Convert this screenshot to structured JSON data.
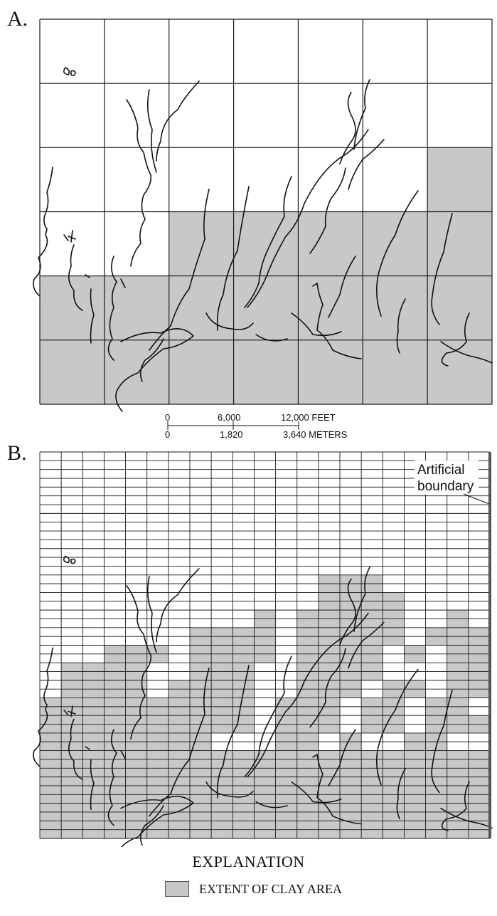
{
  "panel_a": {
    "label": "A.",
    "grid": {
      "cols": 7,
      "rows": 6
    },
    "clay_cells": [
      [
        2,
        6
      ],
      [
        3,
        2
      ],
      [
        3,
        3
      ],
      [
        3,
        4
      ],
      [
        3,
        5
      ],
      [
        3,
        6
      ],
      [
        4,
        0
      ],
      [
        4,
        1
      ],
      [
        4,
        2
      ],
      [
        4,
        3
      ],
      [
        4,
        4
      ],
      [
        4,
        5
      ],
      [
        4,
        6
      ],
      [
        5,
        0
      ],
      [
        5,
        1
      ],
      [
        5,
        2
      ],
      [
        5,
        3
      ],
      [
        5,
        4
      ],
      [
        5,
        5
      ],
      [
        5,
        6
      ]
    ]
  },
  "scale_bar": {
    "feet_labels": [
      "0",
      "6,000",
      "12,000 FEET"
    ],
    "meter_labels": [
      "0",
      "1,820",
      "3,640 METERS"
    ]
  },
  "panel_b": {
    "label": "B.",
    "grid": {
      "cols": 21,
      "rows": 44
    },
    "annotation": [
      "Artificial",
      "boundary"
    ],
    "clay_bands": [
      {
        "from_row": 14,
        "segments": [
          [
            13,
            16
          ]
        ]
      },
      {
        "from_row": 16,
        "segments": [
          [
            13,
            17
          ]
        ]
      },
      {
        "from_row": 18,
        "segments": [
          [
            10,
            11
          ],
          [
            12,
            17
          ],
          [
            19,
            20
          ]
        ]
      },
      {
        "from_row": 20,
        "segments": [
          [
            7,
            11
          ],
          [
            12,
            17
          ],
          [
            18,
            21
          ]
        ]
      },
      {
        "from_row": 22,
        "segments": [
          [
            3,
            6
          ],
          [
            7,
            11
          ],
          [
            12,
            16
          ],
          [
            17,
            18
          ],
          [
            19,
            21
          ]
        ]
      },
      {
        "from_row": 24,
        "segments": [
          [
            1,
            5
          ],
          [
            7,
            10
          ],
          [
            12,
            16
          ],
          [
            19,
            21
          ]
        ]
      },
      {
        "from_row": 26,
        "segments": [
          [
            1,
            5
          ],
          [
            6,
            10
          ],
          [
            12,
            15
          ],
          [
            16,
            18
          ],
          [
            19,
            21
          ]
        ]
      },
      {
        "from_row": 28,
        "segments": [
          [
            0,
            10
          ],
          [
            11,
            14
          ],
          [
            15,
            17
          ],
          [
            18,
            20
          ]
        ]
      },
      {
        "from_row": 30,
        "segments": [
          [
            0,
            10
          ],
          [
            11,
            14
          ],
          [
            15,
            17
          ],
          [
            18,
            21
          ]
        ]
      },
      {
        "from_row": 32,
        "segments": [
          [
            0,
            8
          ],
          [
            11,
            13
          ],
          [
            14,
            15
          ],
          [
            17,
            19
          ]
        ]
      },
      {
        "from_row": 34,
        "segments": [
          [
            0,
            21
          ]
        ]
      }
    ]
  },
  "explanation": {
    "title": "EXPLANATION",
    "legend_label": "EXTENT OF CLAY AREA"
  },
  "colors": {
    "clay_fill": "#c8c8c8",
    "grid_line": "#1a1a1a",
    "stream_line": "#111111",
    "boundary": "#555555"
  }
}
